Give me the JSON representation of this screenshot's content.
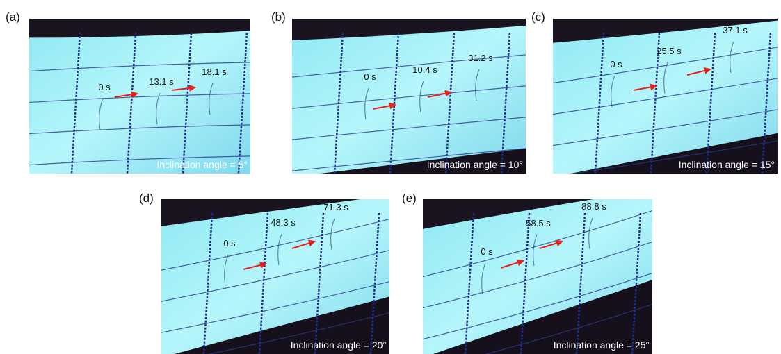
{
  "panels": [
    {
      "label": "(a)",
      "times": [
        "0 s",
        "13.1 s",
        "18.1 s"
      ],
      "caption": "Inclination angle = 5°"
    },
    {
      "label": "(b)",
      "times": [
        "0 s",
        "10.4 s",
        "31.2 s"
      ],
      "caption": "Inclination angle = 10°"
    },
    {
      "label": "(c)",
      "times": [
        "0 s",
        "25.5 s",
        "37.1 s"
      ],
      "caption": "Inclination angle = 15°"
    },
    {
      "label": "(d)",
      "times": [
        "0 s",
        "48.3 s",
        "71.3 s"
      ],
      "caption": "Inclination angle = 20°"
    },
    {
      "label": "(e)",
      "times": [
        "0 s",
        "58.5 s",
        "88.8 s"
      ],
      "caption": "Inclination angle = 25°"
    }
  ]
}
